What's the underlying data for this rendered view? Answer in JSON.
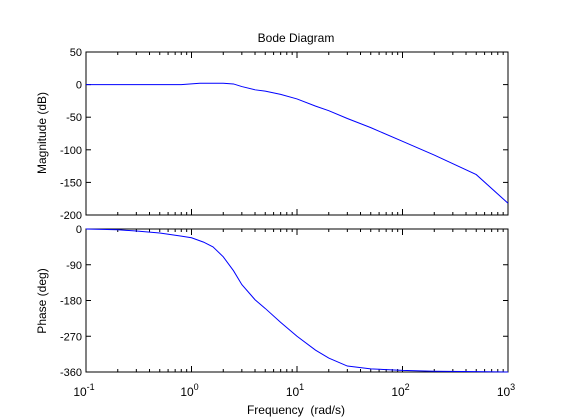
{
  "chart_data": [
    {
      "type": "line",
      "title": "Bode Diagram",
      "xlabel": "",
      "ylabel": "Magnitude (dB)",
      "xscale": "log",
      "xlim": [
        0.1,
        1000
      ],
      "ylim": [
        -200,
        50
      ],
      "yticks": [
        50,
        0,
        -50,
        -100,
        -150,
        -200
      ],
      "grid": false,
      "color": "#0000ff",
      "series": [
        {
          "x": [
            0.1,
            0.3,
            0.8,
            1.2,
            1.5,
            2.0,
            2.5,
            3.0,
            4.0,
            5.0,
            7.0,
            10,
            15,
            20,
            30,
            50,
            100,
            200,
            500,
            1000
          ],
          "y": [
            0,
            0,
            0,
            2,
            2,
            2,
            1,
            -3,
            -8,
            -10,
            -15,
            -22,
            -33,
            -40,
            -52,
            -66,
            -87,
            -108,
            -138,
            -182
          ]
        }
      ]
    },
    {
      "type": "line",
      "title": "",
      "xlabel": "Frequency  (rad/s)",
      "ylabel": "Phase (deg)",
      "xscale": "log",
      "xlim": [
        0.1,
        1000
      ],
      "ylim": [
        -360,
        0
      ],
      "yticks": [
        0,
        -90,
        -180,
        -270,
        -360
      ],
      "xticks": [
        "10^-1",
        "10^0",
        "10^1",
        "10^2",
        "10^3"
      ],
      "grid": false,
      "color": "#0000ff",
      "series": [
        {
          "x": [
            0.1,
            0.2,
            0.3,
            0.5,
            0.8,
            1.0,
            1.3,
            1.6,
            2.0,
            2.5,
            3.0,
            4.0,
            5.0,
            7.0,
            10,
            15,
            20,
            30,
            50,
            100,
            200,
            500,
            1000
          ],
          "y": [
            0,
            -2,
            -5,
            -10,
            -18,
            -22,
            -33,
            -45,
            -70,
            -105,
            -140,
            -178,
            -200,
            -235,
            -270,
            -305,
            -325,
            -345,
            -352,
            -356,
            -358,
            -359,
            -360
          ]
        }
      ]
    }
  ]
}
